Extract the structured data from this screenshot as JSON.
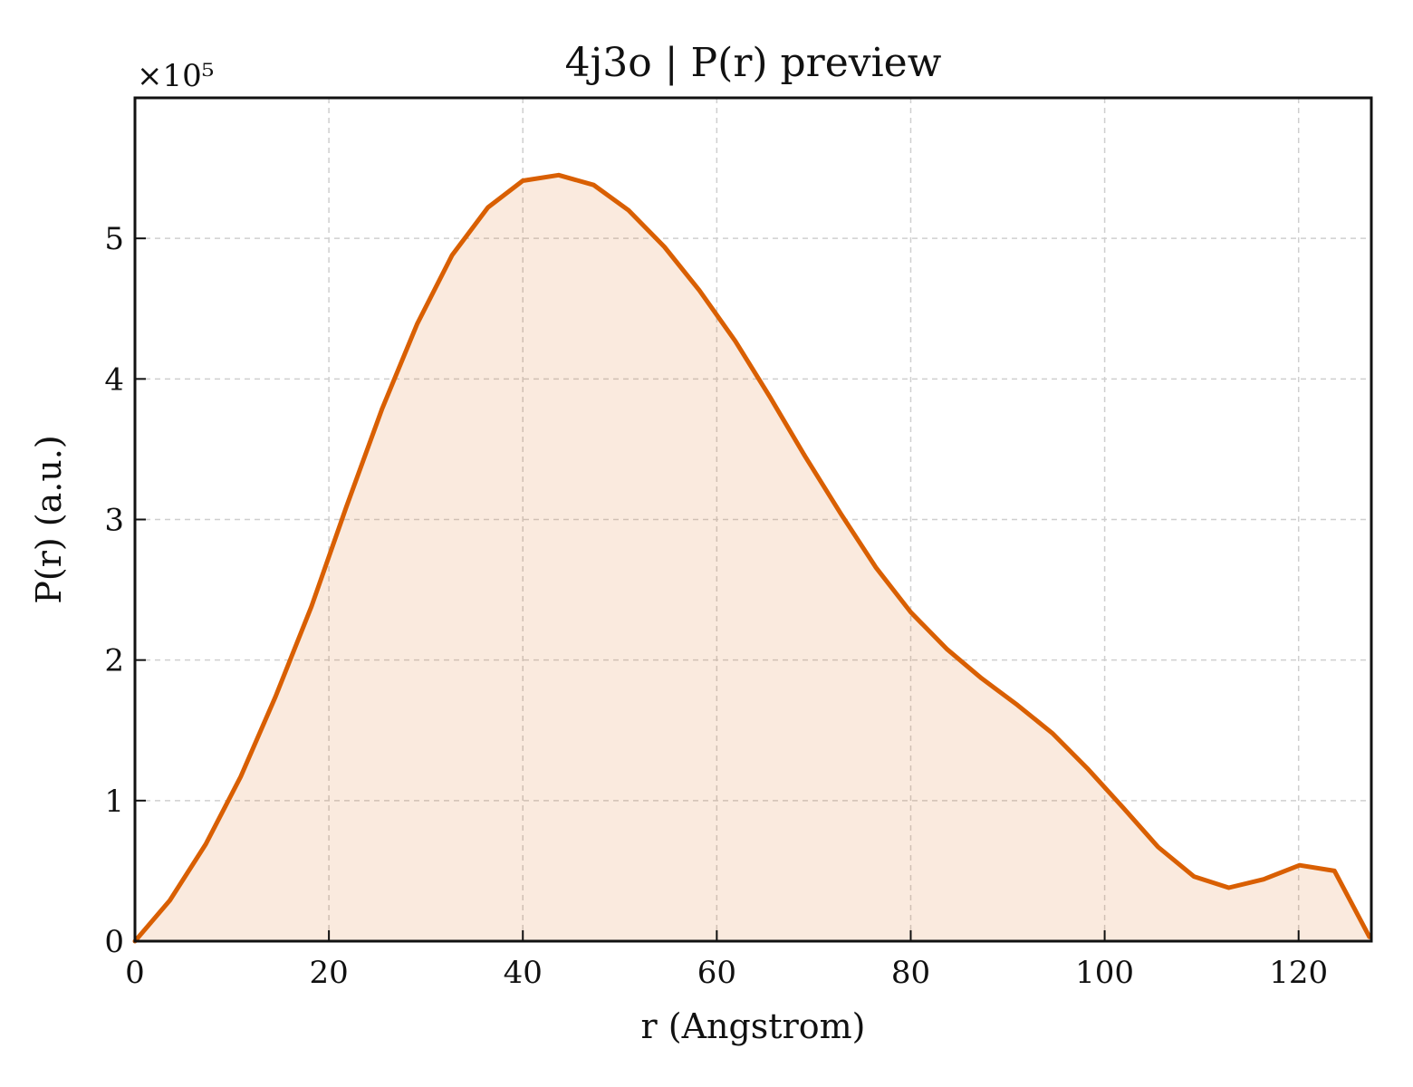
{
  "chart_data": {
    "type": "area",
    "title": "4j3o | P(r) preview",
    "xlabel": "r (Angstrom)",
    "ylabel": "P(r) (a.u.)",
    "y_multiplier": "×10⁵",
    "xlim": [
      0,
      127.5
    ],
    "ylim": [
      0,
      6.0
    ],
    "x_ticks": [
      0,
      20,
      40,
      60,
      80,
      100,
      120
    ],
    "x_tick_labels": [
      "0",
      "20",
      "40",
      "60",
      "80",
      "100",
      "120"
    ],
    "y_ticks": [
      0,
      1,
      2,
      3,
      4,
      5
    ],
    "y_tick_labels": [
      "0",
      "1",
      "2",
      "3",
      "4",
      "5"
    ],
    "grid": true,
    "series": [
      {
        "color": "#d95f02",
        "fill_color": "#d95f02",
        "fill_opacity": 0.13,
        "x": [
          0,
          3.6,
          7.3,
          10.9,
          14.5,
          18.2,
          21.8,
          25.5,
          29.1,
          32.7,
          36.4,
          40.0,
          43.7,
          47.3,
          50.9,
          54.6,
          58.2,
          61.9,
          65.5,
          69.1,
          72.8,
          76.4,
          80.0,
          83.7,
          87.3,
          91.0,
          94.6,
          98.2,
          101.9,
          105.5,
          109.2,
          112.8,
          116.4,
          120.1,
          123.7,
          127.3
        ],
        "y": [
          0.0,
          0.29,
          0.69,
          1.17,
          1.74,
          2.38,
          3.09,
          3.79,
          4.39,
          4.88,
          5.22,
          5.41,
          5.45,
          5.38,
          5.2,
          4.94,
          4.63,
          4.27,
          3.87,
          3.45,
          3.04,
          2.66,
          2.34,
          2.08,
          1.87,
          1.68,
          1.48,
          1.23,
          0.95,
          0.67,
          0.46,
          0.38,
          0.44,
          0.54,
          0.5,
          0.03
        ]
      }
    ]
  }
}
